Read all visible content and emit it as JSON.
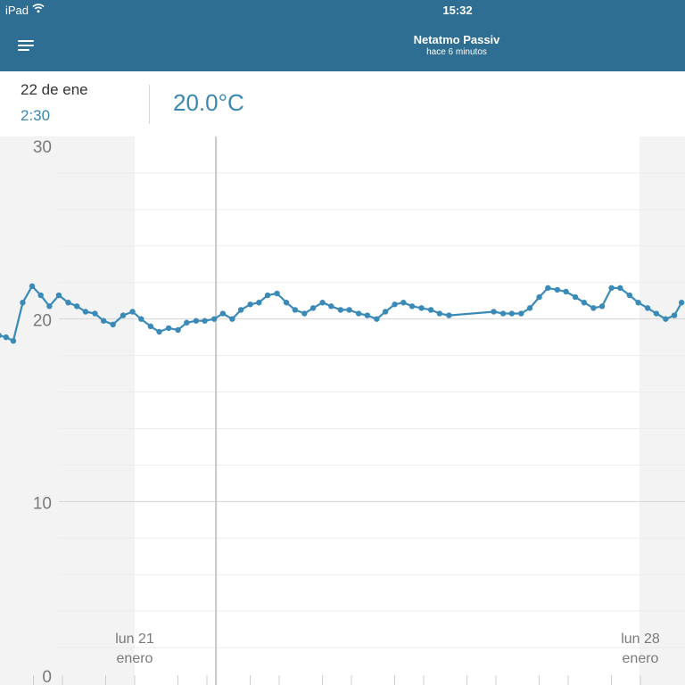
{
  "status_bar": {
    "carrier": "iPad",
    "time": "15:32"
  },
  "nav": {
    "title": "Netatmo Passiv",
    "subtitle": "hace 6 minutos"
  },
  "selection": {
    "date": "22 de ene",
    "time": "2:30",
    "value": "20.0°C"
  },
  "chart_data": {
    "type": "line",
    "title": "",
    "xlabel": "",
    "ylabel": "",
    "ylim": [
      0,
      30
    ],
    "y_ticks": [
      "0",
      "10",
      "20",
      "30"
    ],
    "x_unit": "days since 21 enero",
    "x_labels": [
      {
        "day": "lun 21",
        "month": "enero",
        "x": 0
      },
      {
        "day": "lun 28",
        "month": "enero",
        "x": 7
      }
    ],
    "cursor_x": 1.125,
    "grid": true,
    "line_color": "#3a8ab8",
    "series": [
      {
        "points": [
          [
            -1.88,
            19.1
          ],
          [
            -1.78,
            19.0
          ],
          [
            -1.68,
            18.8
          ],
          [
            -1.55,
            20.9
          ],
          [
            -1.42,
            21.8
          ],
          [
            -1.3,
            21.3
          ],
          [
            -1.18,
            20.7
          ],
          [
            -1.05,
            21.3
          ],
          [
            -0.92,
            20.9
          ],
          [
            -0.8,
            20.7
          ],
          [
            -0.68,
            20.4
          ],
          [
            -0.55,
            20.3
          ],
          [
            -0.43,
            19.9
          ],
          [
            -0.3,
            19.7
          ],
          [
            -0.16,
            20.2
          ],
          [
            -0.03,
            20.4
          ],
          [
            0.09,
            20.0
          ],
          [
            0.22,
            19.6
          ],
          [
            0.34,
            19.3
          ],
          [
            0.47,
            19.5
          ],
          [
            0.6,
            19.4
          ],
          [
            0.72,
            19.8
          ],
          [
            0.85,
            19.9
          ],
          [
            0.97,
            19.9
          ],
          [
            1.1,
            20.0
          ],
          [
            1.22,
            20.3
          ],
          [
            1.35,
            20.0
          ],
          [
            1.47,
            20.5
          ],
          [
            1.6,
            20.8
          ],
          [
            1.72,
            20.9
          ],
          [
            1.84,
            21.3
          ],
          [
            1.97,
            21.4
          ],
          [
            2.1,
            20.9
          ],
          [
            2.22,
            20.5
          ],
          [
            2.35,
            20.3
          ],
          [
            2.47,
            20.6
          ],
          [
            2.6,
            20.9
          ],
          [
            2.72,
            20.7
          ],
          [
            2.85,
            20.5
          ],
          [
            2.97,
            20.5
          ],
          [
            3.1,
            20.3
          ],
          [
            3.22,
            20.2
          ],
          [
            3.35,
            20.0
          ],
          [
            3.47,
            20.4
          ],
          [
            3.6,
            20.8
          ],
          [
            3.72,
            20.9
          ],
          [
            3.84,
            20.7
          ],
          [
            3.97,
            20.6
          ],
          [
            4.1,
            20.5
          ],
          [
            4.22,
            20.3
          ],
          [
            4.35,
            20.2
          ],
          [
            4.97,
            20.4
          ],
          [
            5.1,
            20.3
          ],
          [
            5.22,
            20.3
          ],
          [
            5.35,
            20.3
          ],
          [
            5.47,
            20.6
          ],
          [
            5.6,
            21.2
          ],
          [
            5.72,
            21.7
          ],
          [
            5.85,
            21.6
          ],
          [
            5.97,
            21.5
          ],
          [
            6.1,
            21.2
          ],
          [
            6.22,
            20.9
          ],
          [
            6.35,
            20.6
          ],
          [
            6.47,
            20.7
          ],
          [
            6.6,
            21.7
          ],
          [
            6.72,
            21.7
          ],
          [
            6.85,
            21.3
          ],
          [
            6.97,
            20.9
          ],
          [
            7.1,
            20.6
          ],
          [
            7.22,
            20.3
          ],
          [
            7.35,
            20.0
          ],
          [
            7.47,
            20.2
          ],
          [
            7.57,
            20.9
          ]
        ]
      }
    ]
  }
}
